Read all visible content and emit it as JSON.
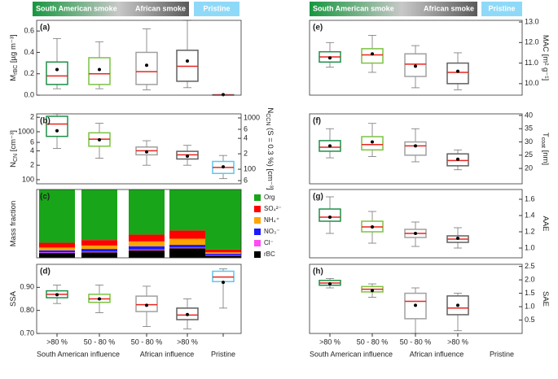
{
  "headers": [
    {
      "smoke_from": "South American smoke",
      "smoke_to": "African smoke",
      "pristine": "Pristine"
    },
    {
      "smoke_from": "South American smoke",
      "smoke_to": "African smoke",
      "pristine": "Pristine"
    }
  ],
  "chart_data": [
    {
      "type": "box",
      "label": "(a)",
      "ylabel": [
        "M",
        "rBC",
        " [µg m⁻³]"
      ],
      "ylim": [
        0,
        0.7
      ],
      "yticks": [
        {
          "value": 0,
          "label": "0.0"
        },
        0.2,
        0.4,
        0.6
      ],
      "boxes": [
        {
          "color": "#1f8f4a",
          "whislo": 0.06,
          "q1": 0.1,
          "med": 0.18,
          "q3": 0.31,
          "whishi": 0.53,
          "mean": 0.24
        },
        {
          "color": "#7cc242",
          "whislo": 0.06,
          "q1": 0.1,
          "med": 0.2,
          "q3": 0.35,
          "whishi": 0.5,
          "mean": 0.24
        },
        {
          "color": "#a0a0a0",
          "whislo": 0.05,
          "q1": 0.1,
          "med": 0.22,
          "q3": 0.4,
          "whishi": 0.62,
          "mean": 0.28
        },
        {
          "color": "#606060",
          "whislo": 0.07,
          "q1": 0.13,
          "med": 0.27,
          "q3": 0.42,
          "whishi": 0.7,
          "mean": 0.32
        },
        {
          "color": "#5cc6ef",
          "whislo": 0,
          "q1": 0,
          "med": 0.002,
          "q3": 0.005,
          "whishi": 0.007,
          "mean": 0.005
        }
      ]
    },
    {
      "type": "box",
      "label": "(b)",
      "ylabel": [
        "N",
        "CN",
        " [cm⁻³]"
      ],
      "ylog": true,
      "ylim": [
        82,
        2360
      ],
      "yticks": [
        100,
        {
          "value": 200,
          "label": "2"
        },
        {
          "value": 400,
          "label": "4"
        },
        {
          "value": 600,
          "label": "6"
        },
        1000,
        {
          "value": 2000,
          "label": "2"
        }
      ],
      "y2label": [
        "N",
        "CCN",
        " (S = 0.3 %) [cm⁻³]"
      ],
      "y2lim": [
        52,
        1200
      ],
      "y2ticks": [
        {
          "value": 60,
          "label": "6"
        },
        100,
        {
          "value": 200,
          "label": "2"
        },
        {
          "value": 400,
          "label": "4"
        },
        {
          "value": 600,
          "label": "6"
        },
        1000
      ],
      "boxes": [
        {
          "color": "#1f8f4a",
          "whislo": 450,
          "q1": 800,
          "med": 1450,
          "q3": 2100,
          "whishi": 2350,
          "mean": 1050
        },
        {
          "color": "#7cc242",
          "whislo": 280,
          "q1": 500,
          "med": 700,
          "q3": 950,
          "whishi": 1500,
          "mean": 680
        },
        {
          "color": "#a0a0a0",
          "whislo": 200,
          "q1": 330,
          "med": 400,
          "q3": 480,
          "whishi": 650,
          "mean": 380
        },
        {
          "color": "#606060",
          "whislo": 200,
          "q1": 270,
          "med": 330,
          "q3": 390,
          "whishi": 520,
          "mean": 310
        },
        {
          "color": "#5cc6ef",
          "whislo": 105,
          "q1": 135,
          "med": 180,
          "q3": 240,
          "whishi": 320,
          "mean": 185
        }
      ]
    },
    {
      "type": "stacked_bar",
      "label": "(c)",
      "ylabel": [
        "Mass fraction"
      ],
      "ylim": [
        0,
        1
      ],
      "series": [
        {
          "name": "rBC",
          "color": "#000000",
          "values": [
            0.07,
            0.08,
            0.11,
            0.14,
            0.03
          ]
        },
        {
          "name": "Cl⁻",
          "color": "#ff4cf0",
          "values": [
            0.01,
            0.01,
            0.01,
            0.01,
            0.01
          ]
        },
        {
          "name": "NO₃⁻",
          "color": "#1a1aff",
          "values": [
            0.03,
            0.04,
            0.05,
            0.04,
            0.02
          ]
        },
        {
          "name": "NH₄⁺",
          "color": "#ffa500",
          "values": [
            0.04,
            0.05,
            0.07,
            0.09,
            0.02
          ]
        },
        {
          "name": "SO₄²⁻",
          "color": "#ff0000",
          "values": [
            0.07,
            0.08,
            0.1,
            0.12,
            0.04
          ]
        },
        {
          "name": "Org",
          "color": "#19a519",
          "values": [
            0.78,
            0.74,
            0.66,
            0.6,
            0.88
          ]
        }
      ]
    },
    {
      "type": "box",
      "label": "(d)",
      "ylabel": [
        "SSA"
      ],
      "ylim": [
        0.7,
        1.0
      ],
      "yticks": [
        {
          "value": 0.7,
          "label": "0.70"
        },
        {
          "value": 0.8,
          "label": "0.80"
        },
        {
          "value": 0.9,
          "label": "0.90"
        }
      ],
      "categories": [
        ">80 %",
        "50 - 80 %",
        "50 - 80 %",
        ">80 %",
        ""
      ],
      "groups": [
        "South American influence",
        "African influence",
        "Pristine"
      ],
      "boxes": [
        {
          "color": "#1f8f4a",
          "whislo": 0.83,
          "q1": 0.855,
          "med": 0.87,
          "q3": 0.885,
          "whishi": 0.91,
          "mean": 0.868
        },
        {
          "color": "#7cc242",
          "whislo": 0.79,
          "q1": 0.835,
          "med": 0.85,
          "q3": 0.87,
          "whishi": 0.91,
          "mean": 0.85
        },
        {
          "color": "#a0a0a0",
          "whislo": 0.73,
          "q1": 0.795,
          "med": 0.825,
          "q3": 0.862,
          "whishi": 0.905,
          "mean": 0.822
        },
        {
          "color": "#606060",
          "whislo": 0.72,
          "q1": 0.76,
          "med": 0.78,
          "q3": 0.81,
          "whishi": 0.85,
          "mean": 0.782
        },
        {
          "color": "#5cc6ef",
          "whislo": 0.81,
          "q1": 0.925,
          "med": 0.945,
          "q3": 0.97,
          "whishi": 0.98,
          "mean": 0.922
        }
      ]
    },
    {
      "type": "box",
      "label": "(e)",
      "ylabel": [
        "MAC [m² g⁻¹]"
      ],
      "ylim": [
        9.44,
        13.08
      ],
      "yticks": [
        {
          "value": 10,
          "label": "10.0"
        },
        {
          "value": 11,
          "label": "11.0"
        },
        {
          "value": 12,
          "label": "12.0"
        },
        {
          "value": 13,
          "label": "13.0"
        }
      ],
      "boxes": [
        {
          "color": "#1f8f4a",
          "whislo": 10.8,
          "q1": 11.05,
          "med": 11.3,
          "q3": 11.55,
          "whishi": 12.0,
          "mean": 11.25
        },
        {
          "color": "#7cc242",
          "whislo": 10.55,
          "q1": 11.0,
          "med": 11.4,
          "q3": 11.7,
          "whishi": 12.35,
          "mean": 11.45
        },
        {
          "color": "#a0a0a0",
          "whislo": 9.8,
          "q1": 10.35,
          "med": 10.95,
          "q3": 11.45,
          "whishi": 11.85,
          "mean": 10.85
        },
        {
          "color": "#606060",
          "whislo": 9.7,
          "q1": 10.0,
          "med": 10.55,
          "q3": 11.0,
          "whishi": 11.5,
          "mean": 10.6
        }
      ]
    },
    {
      "type": "box",
      "label": "(f)",
      "ylabel": [
        "T",
        "coat",
        " [nm]"
      ],
      "ylim": [
        14.2,
        40.6
      ],
      "yticks": [
        20,
        25,
        30,
        35,
        40
      ],
      "boxes": [
        {
          "color": "#1f8f4a",
          "whislo": 24,
          "q1": 26.5,
          "med": 28,
          "q3": 30.5,
          "whishi": 35,
          "mean": 28.5
        },
        {
          "color": "#7cc242",
          "whislo": 24.5,
          "q1": 27,
          "med": 29,
          "q3": 32,
          "whishi": 37,
          "mean": 30
        },
        {
          "color": "#a0a0a0",
          "whislo": 22.5,
          "q1": 25,
          "med": 28.5,
          "q3": 30,
          "whishi": 35,
          "mean": 28.5
        },
        {
          "color": "#606060",
          "whislo": 19.5,
          "q1": 21,
          "med": 23,
          "q3": 25.5,
          "whishi": 27,
          "mean": 23.5
        }
      ]
    },
    {
      "type": "box",
      "label": "(g)",
      "ylabel": [
        "AAE"
      ],
      "ylim": [
        0.88,
        1.72
      ],
      "yticks": [
        {
          "value": 1.0,
          "label": "1.0"
        },
        1.2,
        1.4,
        1.6
      ],
      "boxes": [
        {
          "color": "#1f8f4a",
          "whislo": 1.18,
          "q1": 1.33,
          "med": 1.38,
          "q3": 1.48,
          "whishi": 1.63,
          "mean": 1.38
        },
        {
          "color": "#7cc242",
          "whislo": 1.06,
          "q1": 1.2,
          "med": 1.26,
          "q3": 1.33,
          "whishi": 1.45,
          "mean": 1.26
        },
        {
          "color": "#a0a0a0",
          "whislo": 1.02,
          "q1": 1.13,
          "med": 1.18,
          "q3": 1.23,
          "whishi": 1.32,
          "mean": 1.18
        },
        {
          "color": "#606060",
          "whislo": 1.0,
          "q1": 1.07,
          "med": 1.11,
          "q3": 1.15,
          "whishi": 1.25,
          "mean": 1.12
        }
      ]
    },
    {
      "type": "box",
      "label": "(h)",
      "ylabel": [
        "SAE"
      ],
      "ylim": [
        0,
        2.58
      ],
      "yticks": [
        0.5,
        {
          "value": 1.0,
          "label": "1.0"
        },
        1.5,
        {
          "value": 2.0,
          "label": "2.0"
        },
        2.5
      ],
      "categories": [
        ">80 %",
        "50 - 80 %",
        "50 - 80 %",
        ">80 %"
      ],
      "groups": [
        "South American influence",
        "African influence",
        "Pristine"
      ],
      "boxes": [
        {
          "color": "#1f8f4a",
          "whislo": 1.7,
          "q1": 1.8,
          "med": 1.88,
          "q3": 1.98,
          "whishi": 2.05,
          "mean": 1.85
        },
        {
          "color": "#7cc242",
          "whislo": 1.35,
          "q1": 1.55,
          "med": 1.65,
          "q3": 1.75,
          "whishi": 1.85,
          "mean": 1.6
        },
        {
          "color": "#a0a0a0",
          "whislo": 0,
          "q1": 0.55,
          "med": 1.2,
          "q3": 1.5,
          "whishi": 1.7,
          "mean": 1.05
        },
        {
          "color": "#606060",
          "whislo": 0.1,
          "q1": 0.7,
          "med": 0.95,
          "q3": 1.4,
          "whishi": 1.5,
          "mean": 1.05
        }
      ]
    }
  ]
}
